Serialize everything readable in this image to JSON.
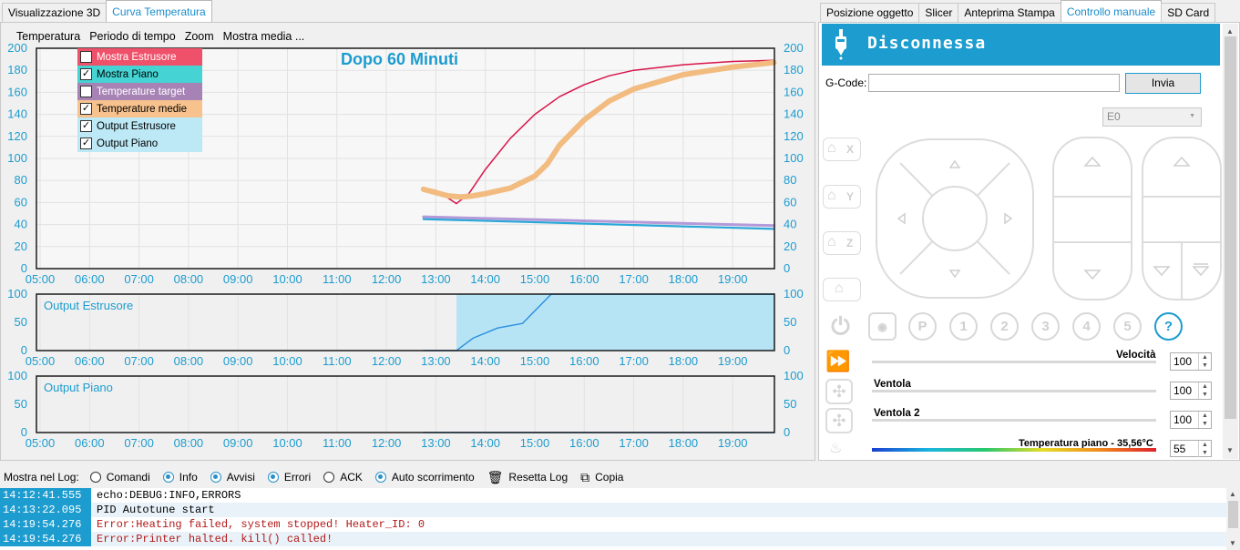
{
  "left_tabs": [
    "Visualizzazione 3D",
    "Curva Temperatura"
  ],
  "right_tabs": [
    "Posizione oggetto",
    "Slicer",
    "Anteprima Stampa",
    "Controllo manuale",
    "SD Card"
  ],
  "menu": [
    "Temperatura",
    "Periodo di tempo",
    "Zoom",
    "Mostra media ..."
  ],
  "chart_title": "Dopo 60 Minuti",
  "legend": [
    {
      "label": "Mostra Estrusore",
      "color": "#f0516a",
      "text_color": "#ffffff"
    },
    {
      "label": "Mostra Piano",
      "color": "#45d3d3",
      "text_color": "#000000"
    },
    {
      "label": "Temperature target",
      "color": "#a783b5",
      "text_color": "#ffffff"
    },
    {
      "label": "Temperature medie",
      "color": "#f7c28d",
      "text_color": "#000000"
    },
    {
      "label": "Output Estrusore",
      "color": "#bde8f5",
      "text_color": "#000000"
    },
    {
      "label": "Output Piano",
      "color": "#bde8f5",
      "text_color": "#000000"
    }
  ],
  "chart_data": [
    {
      "type": "line",
      "x_ticks": [
        "05:00",
        "06:00",
        "07:00",
        "08:00",
        "09:00",
        "10:00",
        "11:00",
        "12:00",
        "13:00",
        "14:00",
        "15:00",
        "16:00",
        "17:00",
        "18:00",
        "19:00"
      ],
      "ylim": [
        0,
        200
      ],
      "y_ticks": [
        0,
        20,
        40,
        60,
        80,
        100,
        120,
        140,
        160,
        180,
        200
      ],
      "series": [
        {
          "name": "Mostra Estrusore",
          "color": "#d7154a",
          "x": [
            "12:45",
            "13:00",
            "13:15",
            "13:25",
            "13:40",
            "14:00",
            "14:30",
            "15:00",
            "15:30",
            "16:00",
            "16:30",
            "17:00",
            "18:00",
            "19:00",
            "19:50"
          ],
          "values": [
            73,
            71,
            64,
            59,
            68,
            90,
            118,
            140,
            156,
            167,
            175,
            180,
            185,
            188,
            189
          ]
        },
        {
          "name": "Temperature medie",
          "color": "#f2bb80",
          "x": [
            "12:45",
            "13:00",
            "13:15",
            "13:30",
            "13:45",
            "14:00",
            "14:30",
            "15:00",
            "15:15",
            "15:30",
            "16:00",
            "16:30",
            "17:00",
            "18:00",
            "19:00",
            "19:50"
          ],
          "values": [
            72,
            69,
            66,
            65,
            66,
            68,
            73,
            84,
            95,
            112,
            135,
            152,
            163,
            176,
            183,
            187
          ]
        },
        {
          "name": "Temperature target",
          "color": "#b49ad8",
          "x": [
            "12:45",
            "19:50"
          ],
          "values": [
            47,
            39
          ]
        },
        {
          "name": "Mostra Piano",
          "color": "#2aa8d8",
          "x": [
            "12:45",
            "19:50"
          ],
          "values": [
            45,
            36
          ]
        }
      ]
    },
    {
      "type": "area",
      "title": "Output Estrusore",
      "ylim": [
        0,
        100
      ],
      "y_ticks": [
        0,
        50,
        100
      ],
      "x_ticks": [
        "05:00",
        "06:00",
        "07:00",
        "08:00",
        "09:00",
        "10:00",
        "11:00",
        "12:00",
        "13:00",
        "14:00",
        "15:00",
        "16:00",
        "17:00",
        "18:00",
        "19:00"
      ],
      "fill": {
        "from": "13:25",
        "to": "19:50",
        "value": 100
      },
      "line": {
        "x": [
          "12:45",
          "13:25",
          "13:45",
          "14:15",
          "14:45",
          "15:20",
          "19:50"
        ],
        "values": [
          0,
          0,
          22,
          40,
          48,
          100,
          100
        ]
      }
    },
    {
      "type": "area",
      "title": "Output Piano",
      "ylim": [
        0,
        100
      ],
      "y_ticks": [
        0,
        50,
        100
      ],
      "x_ticks": [
        "05:00",
        "06:00",
        "07:00",
        "08:00",
        "09:00",
        "10:00",
        "11:00",
        "12:00",
        "13:00",
        "14:00",
        "15:00",
        "16:00",
        "17:00",
        "18:00",
        "19:00"
      ],
      "line": {
        "x": [
          "12:45",
          "19:50"
        ],
        "values": [
          0,
          0
        ]
      }
    }
  ],
  "manual": {
    "status": "Disconnessa",
    "gcode_label": "G-Code:",
    "gcode_value": "",
    "send_label": "Invia",
    "extruder_select": "E0",
    "home_labels": [
      "X",
      "Y",
      "Z",
      ""
    ],
    "circle_labels": [
      "P",
      "1",
      "2",
      "3",
      "4",
      "5",
      "?"
    ],
    "speed_label": "Velocità",
    "speed_value": "100",
    "fan_label": "Ventola",
    "fan_value": "100",
    "fan2_label": "Ventola 2",
    "fan2_value": "100",
    "bed_label": "Temperatura piano - 35,56°C",
    "bed_value": "55"
  },
  "log_bar": {
    "label": "Mostra nel Log:",
    "options": [
      {
        "label": "Comandi",
        "on": false
      },
      {
        "label": "Info",
        "on": true
      },
      {
        "label": "Avvisi",
        "on": true
      },
      {
        "label": "Errori",
        "on": true
      },
      {
        "label": "ACK",
        "on": false
      },
      {
        "label": "Auto scorrimento",
        "on": true
      }
    ],
    "reset_label": "Resetta Log",
    "copy_label": "Copia"
  },
  "log": [
    {
      "time": "14:12:41.555",
      "msg": "echo:DEBUG:INFO,ERRORS",
      "type": "info"
    },
    {
      "time": "14:13:22.095",
      "msg": "PID Autotune start",
      "type": "info"
    },
    {
      "time": "14:19:54.276",
      "msg": "Error:Heating failed, system stopped! Heater_ID: 0",
      "type": "err"
    },
    {
      "time": "14:19:54.276",
      "msg": "Error:Printer halted. kill() called!",
      "type": "err"
    }
  ]
}
